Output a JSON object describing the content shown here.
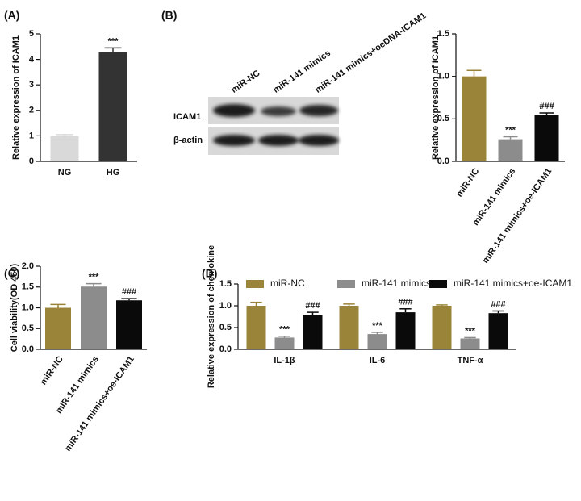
{
  "chart_data": [
    {
      "type": "bar",
      "panel": "(A)",
      "ylabel": "Relative expression of ICAM1",
      "categories": [
        "NG",
        "HG"
      ],
      "values": [
        1.0,
        4.3
      ],
      "errors": [
        0.05,
        0.15
      ],
      "colors": [
        "#d9d9d9",
        "#333333"
      ],
      "sig": [
        null,
        "***"
      ],
      "ylim": [
        0,
        5
      ],
      "yticks": [
        0,
        1,
        2,
        3,
        4,
        5
      ]
    },
    {
      "type": "bar",
      "ylabel": "Relative expression of ICAM1",
      "categories": [
        "miR-NC",
        "miR-141 mimics",
        "miR-141 mimics+oe-ICAM1"
      ],
      "values": [
        1.0,
        0.26,
        0.55
      ],
      "errors": [
        0.07,
        0.03,
        0.02
      ],
      "colors": [
        "#9a8439",
        "#8c8c8c",
        "#0a0a0a"
      ],
      "sig": [
        null,
        "***",
        "###"
      ],
      "ylim": [
        0,
        1.5
      ],
      "yticks": [
        {
          "value": 0,
          "label": "0.0"
        },
        0.5,
        {
          "value": 1,
          "label": "1.0"
        },
        1.5
      ]
    },
    {
      "type": "bar",
      "panel": "(C)",
      "ylabel": "Cell viability(OD 450)",
      "categories": [
        "miR-NC",
        "miR-141 mimics",
        "miR-141 mimics+oe-ICAM1"
      ],
      "values": [
        1.0,
        1.51,
        1.18
      ],
      "errors": [
        0.08,
        0.07,
        0.04
      ],
      "colors": [
        "#9a8439",
        "#8c8c8c",
        "#0a0a0a"
      ],
      "sig": [
        null,
        "***",
        "###"
      ],
      "ylim": [
        0,
        2
      ],
      "yticks": [
        {
          "value": 0,
          "label": "0.0"
        },
        0.5,
        {
          "value": 1,
          "label": "1.0"
        },
        1.5,
        {
          "value": 2,
          "label": "2.0"
        }
      ]
    },
    {
      "type": "bar",
      "panel": "(D)",
      "ylabel": "Relative expression of chemokine",
      "categories": [
        "IL-1β",
        "IL-6",
        "TNF-α"
      ],
      "series": [
        {
          "name": "miR-NC",
          "color": "#9a8439",
          "values": [
            1.0,
            1.0,
            1.0
          ],
          "errors": [
            0.08,
            0.04,
            0.02
          ],
          "sig": [
            null,
            null,
            null
          ]
        },
        {
          "name": "miR-141 mimics",
          "color": "#8c8c8c",
          "values": [
            0.27,
            0.35,
            0.25
          ],
          "errors": [
            0.03,
            0.04,
            0.02
          ],
          "sig": [
            "***",
            "***",
            "***"
          ]
        },
        {
          "name": "miR-141 mimics+oe-ICAM1",
          "color": "#0a0a0a",
          "values": [
            0.78,
            0.85,
            0.83
          ],
          "errors": [
            0.07,
            0.08,
            0.05
          ],
          "sig": [
            "###",
            "###",
            "###"
          ]
        }
      ],
      "ylim": [
        0,
        1.5
      ],
      "yticks": [
        {
          "value": 0,
          "label": "0.0"
        },
        0.5,
        {
          "value": 1,
          "label": "1.0"
        },
        1.5
      ]
    }
  ],
  "blot": {
    "panel": "(B)",
    "lanes": [
      "miR-NC",
      "miR-141 mimics",
      "miR-141 mimics+oeDNA-ICAM1"
    ],
    "rows": [
      "ICAM1",
      "β-actin"
    ]
  }
}
